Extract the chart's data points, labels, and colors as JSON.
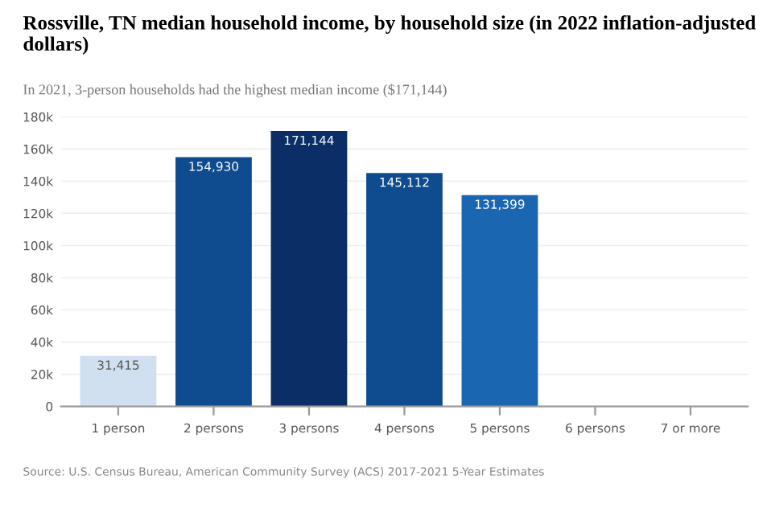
{
  "chart_data": {
    "type": "bar",
    "title": "Rossville, TN median household income, by household size (in 2022 inflation-adjusted dollars)",
    "subtitle": "In 2021, 3-person households had the highest median income ($171,144)",
    "categories": [
      "1 person",
      "2 persons",
      "3 persons",
      "4 persons",
      "5 persons",
      "6 persons",
      "7 or more"
    ],
    "values": [
      31415,
      154930,
      171144,
      145112,
      131399,
      null,
      null
    ],
    "colors": [
      "#d0e0f0",
      "#0f4c8f",
      "#0b2e66",
      "#0f4c8f",
      "#1a66b0",
      "#1a66b0",
      "#1a66b0"
    ],
    "value_labels": [
      "31,415",
      "154,930",
      "171,144",
      "145,112",
      "131,399",
      null,
      null
    ],
    "ylim": [
      0,
      180000
    ],
    "yticks": [
      {
        "value": 0,
        "label": "0"
      },
      {
        "value": 20000,
        "label": "20k"
      },
      {
        "value": 40000,
        "label": "40k"
      },
      {
        "value": 60000,
        "label": "60k"
      },
      {
        "value": 80000,
        "label": "80k"
      },
      {
        "value": 100000,
        "label": "100k"
      },
      {
        "value": 120000,
        "label": "120k"
      },
      {
        "value": 140000,
        "label": "140k"
      },
      {
        "value": 160000,
        "label": "160k"
      },
      {
        "value": 180000,
        "label": "180k"
      }
    ],
    "grid": "y",
    "annotations": [
      "Source: U.S. Census Bureau, American Community Survey (ACS) 2017-2021 5-Year Estimates"
    ]
  }
}
